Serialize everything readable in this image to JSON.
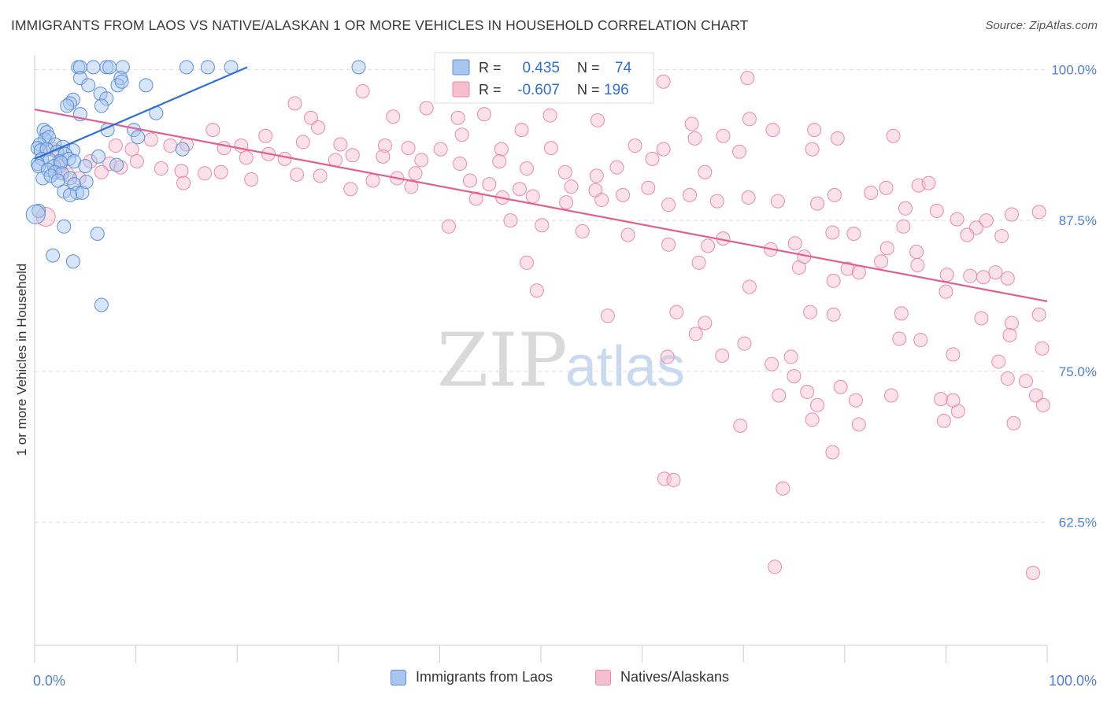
{
  "header": {
    "title": "IMMIGRANTS FROM LAOS VS NATIVE/ALASKAN 1 OR MORE VEHICLES IN HOUSEHOLD CORRELATION CHART",
    "source": "Source: ZipAtlas.com"
  },
  "watermark": {
    "zip": "ZIP",
    "atlas": "atlas"
  },
  "colors": {
    "blue_fill": "#a9c6f0",
    "blue_stroke": "#5b8fd6",
    "blue_line": "#2f6fd0",
    "pink_fill": "#f6bfd0",
    "pink_stroke": "#e98aa9",
    "pink_line": "#e0608e",
    "axis_text": "#4f7fce",
    "grid": "#dcdcdc"
  },
  "legend_box": {
    "rows": [
      {
        "r_label": "R =",
        "r_value": "0.435",
        "n_label": "N =",
        "n_value": "74"
      },
      {
        "r_label": "R =",
        "r_value": "-0.607",
        "n_label": "N =",
        "n_value": "196"
      }
    ]
  },
  "legend_bottom": {
    "series_a": "Immigrants from Laos",
    "series_b": "Natives/Alaskans"
  },
  "chart_data": {
    "type": "scatter",
    "ylabel": "1 or more Vehicles in Household",
    "xlabel": "",
    "x_ticks": [
      "0.0%",
      "100.0%"
    ],
    "y_ticks": [
      "100.0%",
      "87.5%",
      "75.0%",
      "62.5%"
    ],
    "y_tick_values": [
      100.0,
      87.5,
      75.0,
      62.5
    ],
    "xlim": [
      0,
      100
    ],
    "ylim": [
      52.3,
      101.2
    ],
    "series": [
      {
        "name": "Immigrants from Laos",
        "R": 0.435,
        "N": 74,
        "trend": {
          "x": [
            0,
            21
          ],
          "y": [
            92.6,
            100.2
          ]
        },
        "points": [
          [
            4.3,
            100.2
          ],
          [
            4.5,
            100.2
          ],
          [
            5.8,
            100.2
          ],
          [
            7.1,
            100.2
          ],
          [
            7.4,
            100.2
          ],
          [
            8.7,
            100.2
          ],
          [
            15.0,
            100.2
          ],
          [
            17.1,
            100.2
          ],
          [
            19.4,
            100.2
          ],
          [
            32.0,
            100.2
          ],
          [
            4.5,
            99.3
          ],
          [
            8.5,
            99.3
          ],
          [
            11.0,
            98.7
          ],
          [
            5.3,
            98.7
          ],
          [
            8.2,
            98.7
          ],
          [
            8.6,
            99.0
          ],
          [
            6.5,
            98.0
          ],
          [
            7.1,
            97.6
          ],
          [
            3.8,
            97.5
          ],
          [
            6.6,
            97.0
          ],
          [
            3.5,
            97.2
          ],
          [
            3.2,
            97.0
          ],
          [
            4.5,
            96.3
          ],
          [
            0.9,
            95.0
          ],
          [
            1.2,
            94.8
          ],
          [
            1.0,
            94.2
          ],
          [
            1.4,
            94.4
          ],
          [
            0.5,
            93.8
          ],
          [
            2.0,
            93.8
          ],
          [
            2.8,
            93.6
          ],
          [
            3.8,
            93.3
          ],
          [
            9.8,
            95.0
          ],
          [
            14.6,
            93.4
          ],
          [
            10.2,
            94.4
          ],
          [
            0.3,
            93.5
          ],
          [
            0.6,
            93.3
          ],
          [
            1.2,
            93.4
          ],
          [
            2.2,
            93.2
          ],
          [
            3.0,
            93.0
          ],
          [
            0.7,
            92.6
          ],
          [
            1.5,
            92.5
          ],
          [
            2.5,
            92.4
          ],
          [
            3.4,
            92.6
          ],
          [
            0.3,
            92.2
          ],
          [
            1.9,
            92.0
          ],
          [
            2.6,
            92.3
          ],
          [
            3.9,
            92.4
          ],
          [
            0.4,
            92.0
          ],
          [
            1.3,
            91.7
          ],
          [
            2.0,
            91.5
          ],
          [
            2.7,
            91.4
          ],
          [
            0.8,
            91.0
          ],
          [
            1.6,
            91.2
          ],
          [
            3.5,
            91.0
          ],
          [
            5.0,
            92.0
          ],
          [
            6.3,
            92.8
          ],
          [
            8.1,
            92.1
          ],
          [
            2.3,
            90.8
          ],
          [
            3.9,
            90.5
          ],
          [
            2.9,
            89.9
          ],
          [
            4.2,
            89.8
          ],
          [
            4.7,
            89.8
          ],
          [
            3.5,
            89.6
          ],
          [
            0.4,
            88.3
          ],
          [
            2.9,
            87.0
          ],
          [
            6.2,
            86.4
          ],
          [
            1.8,
            84.6
          ],
          [
            3.8,
            84.1
          ],
          [
            6.6,
            80.5
          ],
          [
            5.1,
            90.7
          ],
          [
            12.0,
            96.4
          ],
          [
            7.2,
            95.0
          ]
        ],
        "big_point": [
          0.1,
          88.0
        ]
      },
      {
        "name": "Natives/Alaskans",
        "R": -0.607,
        "N": 196,
        "trend": {
          "x": [
            0,
            100
          ],
          "y": [
            96.7,
            80.8
          ]
        },
        "points": [
          [
            70.4,
            99.3
          ],
          [
            62.1,
            99.0
          ],
          [
            32.4,
            98.2
          ],
          [
            25.7,
            97.2
          ],
          [
            38.7,
            96.8
          ],
          [
            44.4,
            96.3
          ],
          [
            27.3,
            96.0
          ],
          [
            35.4,
            96.1
          ],
          [
            41.8,
            96.0
          ],
          [
            50.9,
            96.2
          ],
          [
            55.6,
            95.8
          ],
          [
            64.9,
            95.5
          ],
          [
            70.6,
            95.9
          ],
          [
            72.9,
            95.0
          ],
          [
            65.2,
            94.3
          ],
          [
            68.0,
            94.5
          ],
          [
            77.0,
            95.0
          ],
          [
            48.1,
            95.0
          ],
          [
            42.2,
            94.6
          ],
          [
            11.5,
            94.2
          ],
          [
            17.6,
            95.0
          ],
          [
            22.8,
            94.5
          ],
          [
            26.5,
            94.0
          ],
          [
            28.0,
            95.2
          ],
          [
            20.4,
            93.7
          ],
          [
            18.7,
            93.5
          ],
          [
            30.2,
            93.8
          ],
          [
            34.6,
            93.7
          ],
          [
            36.9,
            93.5
          ],
          [
            40.1,
            93.4
          ],
          [
            46.1,
            93.4
          ],
          [
            51.0,
            93.5
          ],
          [
            59.3,
            93.7
          ],
          [
            62.1,
            93.4
          ],
          [
            69.6,
            93.2
          ],
          [
            76.8,
            93.4
          ],
          [
            79.3,
            94.3
          ],
          [
            84.8,
            94.5
          ],
          [
            8.0,
            93.7
          ],
          [
            9.6,
            93.4
          ],
          [
            13.4,
            93.7
          ],
          [
            15.0,
            93.8
          ],
          [
            20.9,
            92.7
          ],
          [
            23.1,
            93.0
          ],
          [
            24.7,
            92.6
          ],
          [
            29.7,
            92.5
          ],
          [
            31.4,
            92.9
          ],
          [
            34.4,
            92.8
          ],
          [
            38.2,
            92.5
          ],
          [
            42.0,
            92.2
          ],
          [
            45.9,
            92.4
          ],
          [
            48.6,
            91.8
          ],
          [
            52.4,
            91.5
          ],
          [
            55.5,
            91.2
          ],
          [
            57.5,
            91.9
          ],
          [
            61.0,
            92.6
          ],
          [
            66.2,
            91.5
          ],
          [
            7.4,
            92.2
          ],
          [
            8.5,
            91.9
          ],
          [
            10.1,
            92.4
          ],
          [
            12.5,
            91.8
          ],
          [
            14.5,
            91.6
          ],
          [
            16.8,
            91.4
          ],
          [
            18.4,
            91.5
          ],
          [
            21.4,
            90.9
          ],
          [
            25.9,
            91.3
          ],
          [
            28.2,
            91.2
          ],
          [
            33.4,
            90.8
          ],
          [
            35.8,
            91.0
          ],
          [
            37.2,
            90.3
          ],
          [
            43.0,
            90.8
          ],
          [
            44.9,
            90.5
          ],
          [
            47.9,
            90.1
          ],
          [
            53.0,
            90.3
          ],
          [
            55.4,
            90.0
          ],
          [
            58.1,
            89.6
          ],
          [
            60.6,
            90.2
          ],
          [
            6.6,
            91.5
          ],
          [
            3.3,
            91.3
          ],
          [
            5.5,
            92.4
          ],
          [
            4.4,
            91.0
          ],
          [
            2.5,
            92.0
          ],
          [
            1.8,
            93.4
          ],
          [
            14.7,
            90.6
          ],
          [
            31.2,
            90.1
          ],
          [
            37.6,
            91.4
          ],
          [
            43.6,
            89.3
          ],
          [
            46.2,
            89.4
          ],
          [
            49.2,
            89.5
          ],
          [
            52.5,
            89.0
          ],
          [
            56.0,
            89.2
          ],
          [
            62.6,
            88.8
          ],
          [
            64.7,
            89.6
          ],
          [
            67.4,
            89.1
          ],
          [
            70.5,
            89.4
          ],
          [
            73.4,
            89.1
          ],
          [
            84.1,
            90.2
          ],
          [
            87.3,
            90.4
          ],
          [
            88.3,
            90.6
          ],
          [
            82.6,
            89.8
          ],
          [
            77.3,
            88.9
          ],
          [
            79.0,
            89.6
          ],
          [
            86.0,
            88.5
          ],
          [
            89.1,
            88.3
          ],
          [
            91.1,
            87.6
          ],
          [
            93.0,
            86.9
          ],
          [
            94.0,
            87.5
          ],
          [
            96.5,
            88.0
          ],
          [
            99.2,
            88.2
          ],
          [
            85.8,
            87.0
          ],
          [
            92.1,
            86.3
          ],
          [
            95.5,
            86.2
          ],
          [
            40.9,
            87.0
          ],
          [
            47.0,
            87.5
          ],
          [
            50.1,
            87.1
          ],
          [
            54.1,
            86.6
          ],
          [
            58.6,
            86.3
          ],
          [
            62.6,
            85.5
          ],
          [
            66.5,
            85.4
          ],
          [
            68.0,
            86.0
          ],
          [
            72.7,
            85.1
          ],
          [
            75.1,
            85.6
          ],
          [
            78.8,
            86.5
          ],
          [
            80.9,
            86.4
          ],
          [
            84.2,
            85.2
          ],
          [
            87.1,
            84.9
          ],
          [
            48.6,
            84.0
          ],
          [
            65.6,
            84.0
          ],
          [
            75.5,
            83.6
          ],
          [
            76.0,
            84.5
          ],
          [
            80.3,
            83.5
          ],
          [
            81.4,
            83.2
          ],
          [
            83.6,
            84.1
          ],
          [
            87.2,
            83.8
          ],
          [
            90.1,
            83.0
          ],
          [
            92.4,
            82.9
          ],
          [
            93.7,
            82.8
          ],
          [
            94.9,
            83.2
          ],
          [
            96.1,
            82.7
          ],
          [
            49.6,
            81.7
          ],
          [
            70.6,
            82.0
          ],
          [
            78.9,
            82.5
          ],
          [
            90.0,
            81.6
          ],
          [
            56.6,
            79.6
          ],
          [
            63.4,
            79.9
          ],
          [
            65.3,
            78.1
          ],
          [
            66.2,
            79.0
          ],
          [
            76.6,
            79.9
          ],
          [
            78.9,
            79.7
          ],
          [
            85.6,
            79.8
          ],
          [
            93.5,
            79.4
          ],
          [
            96.5,
            79.0
          ],
          [
            99.2,
            79.7
          ],
          [
            85.4,
            77.7
          ],
          [
            87.5,
            77.6
          ],
          [
            90.7,
            76.4
          ],
          [
            95.2,
            75.8
          ],
          [
            96.3,
            78.0
          ],
          [
            99.5,
            76.9
          ],
          [
            62.5,
            76.2
          ],
          [
            67.9,
            76.3
          ],
          [
            70.1,
            77.3
          ],
          [
            74.7,
            76.2
          ],
          [
            72.8,
            75.6
          ],
          [
            75.0,
            74.6
          ],
          [
            76.3,
            73.3
          ],
          [
            77.3,
            72.2
          ],
          [
            73.5,
            73.0
          ],
          [
            76.8,
            71.0
          ],
          [
            79.6,
            73.7
          ],
          [
            81.1,
            72.6
          ],
          [
            84.6,
            73.0
          ],
          [
            91.2,
            71.7
          ],
          [
            96.1,
            74.4
          ],
          [
            97.9,
            74.2
          ],
          [
            98.9,
            73.0
          ],
          [
            99.6,
            72.2
          ],
          [
            96.7,
            70.7
          ],
          [
            89.8,
            70.9
          ],
          [
            89.5,
            72.7
          ],
          [
            90.7,
            72.6
          ],
          [
            81.4,
            70.6
          ],
          [
            69.7,
            70.5
          ],
          [
            62.2,
            66.1
          ],
          [
            73.9,
            65.3
          ],
          [
            63.1,
            66.0
          ],
          [
            78.8,
            68.3
          ],
          [
            73.1,
            58.8
          ],
          [
            98.6,
            58.3
          ]
        ],
        "big_point": [
          1.1,
          87.8
        ]
      }
    ]
  }
}
